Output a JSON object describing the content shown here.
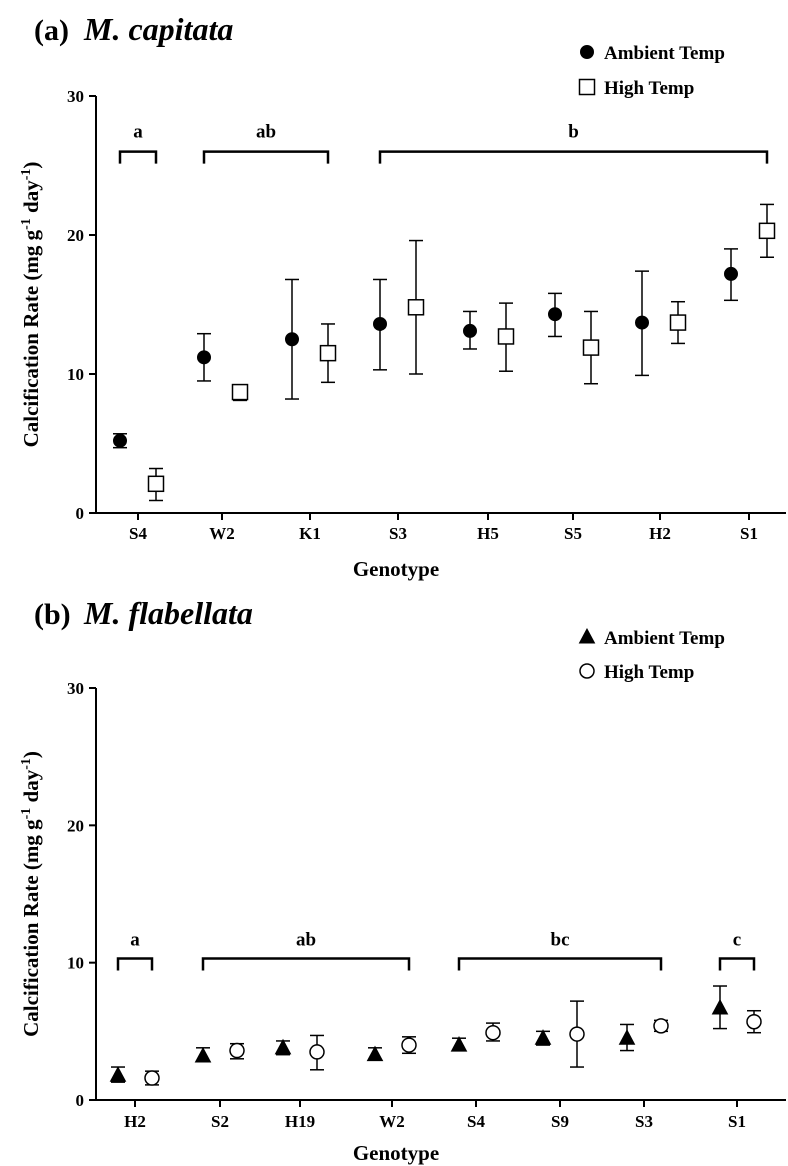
{
  "chart_data": [
    {
      "type": "scatter",
      "panel": "(a)",
      "title": "M. capitata",
      "xlabel": "Genotype",
      "ylabel": "Calcification Rate (mg g-1 day-1)",
      "ylabel_parts": {
        "main": "Calcification Rate (mg g",
        "sup1": "-1",
        "mid": " day",
        "sup2": "-1",
        "end": ")"
      },
      "ylim": [
        0,
        30
      ],
      "yticks": [
        0,
        10,
        20,
        30
      ],
      "categories": [
        "S4",
        "W2",
        "K1",
        "S3",
        "H5",
        "S5",
        "H2",
        "S1"
      ],
      "legend_position": "top-right",
      "series": [
        {
          "name": "Ambient Temp",
          "marker": "filled-circle",
          "values": [
            5.2,
            11.2,
            12.5,
            13.6,
            13.1,
            14.3,
            13.7,
            17.2
          ],
          "err_low": [
            4.7,
            9.5,
            8.2,
            10.3,
            11.8,
            12.7,
            9.9,
            15.3
          ],
          "err_high": [
            5.7,
            12.9,
            16.8,
            16.8,
            14.5,
            15.8,
            17.4,
            19.0
          ]
        },
        {
          "name": "High Temp",
          "marker": "open-square",
          "values": [
            2.1,
            8.7,
            11.5,
            14.8,
            12.7,
            11.9,
            13.7,
            20.3
          ],
          "err_low": [
            0.9,
            8.1,
            9.4,
            10.0,
            10.2,
            9.3,
            12.2,
            18.4
          ],
          "err_high": [
            3.2,
            9.2,
            13.6,
            19.6,
            15.1,
            14.5,
            15.2,
            22.2
          ]
        }
      ],
      "groups": [
        {
          "label": "a",
          "from": "S4",
          "to": "S4",
          "y": 26.0
        },
        {
          "label": "ab",
          "from": "W2",
          "to": "K1",
          "y": 26.0
        },
        {
          "label": "b",
          "from": "S3",
          "to": "S1",
          "y": 26.0
        }
      ]
    },
    {
      "type": "scatter",
      "panel": "(b)",
      "title": "M. flabellata",
      "xlabel": "Genotype",
      "ylabel": "Calcification Rate (mg g-1 day-1)",
      "ylabel_parts": {
        "main": "Calcification Rate (mg g",
        "sup1": "-1",
        "mid": " day",
        "sup2": "-1",
        "end": ")"
      },
      "ylim": [
        0,
        30
      ],
      "yticks": [
        0,
        10,
        20,
        30
      ],
      "categories": [
        "H2",
        "S2",
        "H19",
        "W2",
        "S4",
        "S9",
        "S3",
        "S1"
      ],
      "legend_position": "top-right",
      "series": [
        {
          "name": "Ambient Temp",
          "marker": "filled-triangle",
          "values": [
            1.8,
            3.2,
            3.8,
            3.3,
            4.0,
            4.5,
            4.5,
            6.7
          ],
          "err_low": [
            1.3,
            2.8,
            3.3,
            2.9,
            3.6,
            4.0,
            3.6,
            5.2
          ],
          "err_high": [
            2.4,
            3.8,
            4.3,
            3.8,
            4.5,
            5.0,
            5.5,
            8.3
          ]
        },
        {
          "name": "High Temp",
          "marker": "open-circle",
          "values": [
            1.6,
            3.6,
            3.5,
            4.0,
            4.9,
            4.8,
            5.4,
            5.7
          ],
          "err_low": [
            1.1,
            3.0,
            2.2,
            3.4,
            4.3,
            2.4,
            5.0,
            4.9
          ],
          "err_high": [
            2.1,
            4.1,
            4.7,
            4.6,
            5.6,
            7.2,
            5.8,
            6.5
          ]
        }
      ],
      "groups": [
        {
          "label": "a",
          "from": "H2",
          "to": "H2",
          "y": 10.3
        },
        {
          "label": "ab",
          "from": "S2",
          "to": "W2",
          "y": 10.3
        },
        {
          "label": "bc",
          "from": "S4",
          "to": "S3",
          "y": 10.3
        },
        {
          "label": "c",
          "from": "S1",
          "to": "S1",
          "y": 10.3
        }
      ]
    }
  ]
}
